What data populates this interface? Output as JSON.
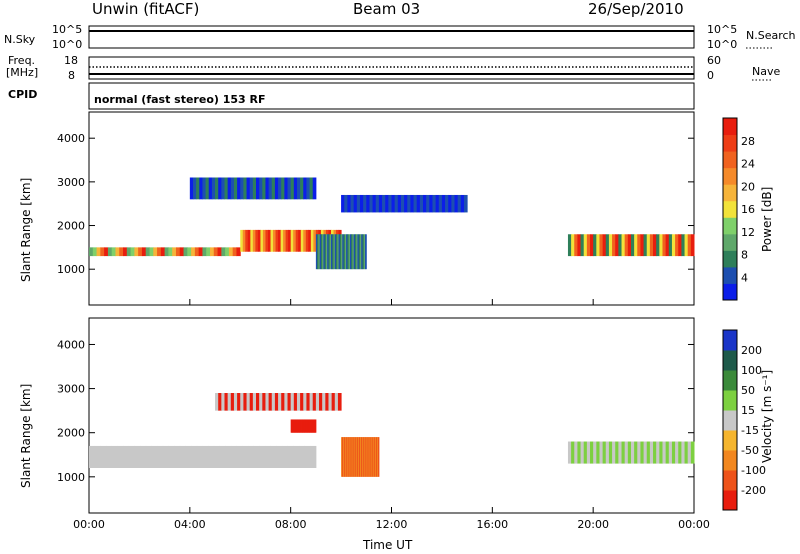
{
  "header": {
    "station": "Unwin (fitACF)",
    "beam": "Beam 03",
    "date": "26/Sep/2010"
  },
  "aux_panels": {
    "nsky_label": "N.Sky",
    "nsearch_label": "N.Search",
    "noise_ticks": [
      "10^5",
      "10^0"
    ],
    "freq_label_line1": "Freq.",
    "freq_label_line2": "[MHz]",
    "freq_ticks": [
      "18",
      "8"
    ],
    "nave_label": "Nave",
    "nave_ticks": [
      "60",
      "0"
    ],
    "cpid_label": "CPID",
    "cpid_text": "normal (fast stereo) 153 RF"
  },
  "chart_data": [
    {
      "type": "heatmap",
      "name": "power",
      "ylabel": "Slant Range [km]",
      "xlabel": "Time UT",
      "x_range": [
        "00:00",
        "24:00"
      ],
      "ylim": [
        180,
        4600
      ],
      "yticks": [
        1000,
        2000,
        3000,
        4000
      ],
      "colorbar": {
        "label": "Power [dB]",
        "ticks": [
          "4",
          "8",
          "12",
          "16",
          "20",
          "24",
          "28"
        ],
        "colors": [
          "#0b1ee8",
          "#1d4fb0",
          "#2e7f5a",
          "#5fa86a",
          "#7fd06a",
          "#f2e23a",
          "#f6b43a",
          "#f58a2a",
          "#f0621f",
          "#ee3d16",
          "#e81d0e"
        ]
      }
    },
    {
      "type": "heatmap",
      "name": "velocity",
      "ylabel": "Slant Range [km]",
      "xlabel": "Time UT",
      "x_range": [
        "00:00",
        "24:00"
      ],
      "ylim": [
        180,
        4600
      ],
      "yticks": [
        1000,
        2000,
        3000,
        4000
      ],
      "colorbar": {
        "label": "Velocity [m s⁻¹]",
        "ticks": [
          "200",
          "100",
          "50",
          "15",
          "-15",
          "-50",
          "-100",
          "-200"
        ],
        "colors": [
          "#1a35c8",
          "#1e5a4a",
          "#3b8a3a",
          "#7dd040",
          "#c8c8c8",
          "#f5b52e",
          "#f2871f",
          "#ee531a",
          "#e81d0e"
        ]
      }
    }
  ],
  "time_axis": {
    "ticks": [
      "00:00",
      "04:00",
      "08:00",
      "12:00",
      "16:00",
      "20:00",
      "00:00"
    ],
    "label": "Time UT"
  }
}
